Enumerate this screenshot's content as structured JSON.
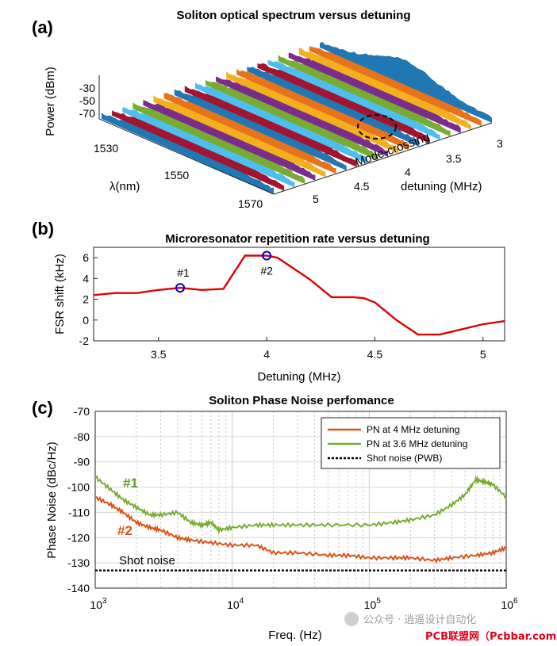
{
  "chart_data": [
    {
      "type": "area",
      "panel_label": "(a)",
      "title": "Soliton optical spectrum versus detuning",
      "x_axis": {
        "label": "λ(nm)",
        "ticks": [
          "1530",
          "1550",
          "1570"
        ]
      },
      "y_axis": {
        "label": "detuning (MHz)",
        "ticks": [
          "3",
          "3.5",
          "4",
          "4.5",
          "5"
        ]
      },
      "z_axis": {
        "label": "Power (dBm)",
        "ticks": [
          "-30",
          "-50",
          "-70"
        ]
      },
      "annotation": "Mode-crossing",
      "series_count": 22,
      "colors": [
        "#1f77b4",
        "#e8731a",
        "#f2b01e",
        "#7b2d8e",
        "#77ac30",
        "#4dbeee",
        "#a2142f"
      ]
    },
    {
      "type": "line",
      "panel_label": "(b)",
      "title": "Microresonator repetition rate versus detuning",
      "xlabel": "Detuning (MHz)",
      "ylabel": "FSR shift (kHz)",
      "xlim": [
        3.2,
        5.1
      ],
      "ylim": [
        -2,
        7
      ],
      "xticks": [
        "3.5",
        "4",
        "4.5",
        "5"
      ],
      "yticks": [
        "-2",
        "0",
        "2",
        "4",
        "6"
      ],
      "series": [
        {
          "color": "#e00000",
          "x": [
            3.2,
            3.3,
            3.4,
            3.5,
            3.6,
            3.65,
            3.7,
            3.8,
            3.9,
            3.95,
            4.0,
            4.05,
            4.1,
            4.2,
            4.3,
            4.4,
            4.45,
            4.5,
            4.6,
            4.7,
            4.8,
            4.9,
            5.0,
            5.1
          ],
          "y": [
            2.4,
            2.6,
            2.6,
            2.9,
            3.1,
            3.0,
            2.9,
            3.0,
            6.2,
            6.2,
            6.2,
            6.0,
            5.3,
            3.9,
            2.2,
            2.2,
            2.1,
            1.7,
            0.0,
            -1.4,
            -1.4,
            -0.9,
            -0.4,
            -0.1
          ]
        }
      ],
      "markers": [
        {
          "label": "#1",
          "x": 3.6,
          "y": 3.1
        },
        {
          "label": "#2",
          "x": 4.0,
          "y": 6.2
        }
      ]
    },
    {
      "type": "line",
      "panel_label": "(c)",
      "title": "Soliton Phase Noise perfomance",
      "xlabel": "Freq. (Hz)",
      "ylabel": "Phase Noise (dBc/Hz)",
      "xscale": "log",
      "xlim": [
        1000,
        1000000
      ],
      "ylim": [
        -140,
        -70
      ],
      "grid": true,
      "legend_position": "top-right",
      "xticks": [
        {
          "base": "10",
          "exp": "3"
        },
        {
          "base": "10",
          "exp": "4"
        },
        {
          "base": "10",
          "exp": "5"
        },
        {
          "base": "10",
          "exp": "6"
        }
      ],
      "yticks": [
        "-70",
        "-80",
        "-90",
        "-100",
        "-110",
        "-120",
        "-130",
        "-140"
      ],
      "series": [
        {
          "name": "PN  at 4 MHz detuning",
          "color": "#d95319",
          "x": [
            1000,
            1300,
            1600,
            2000,
            2500,
            3000,
            4000,
            5000,
            7000,
            10000,
            15000,
            20000,
            30000,
            50000,
            70000,
            100000,
            150000,
            200000,
            300000,
            400000,
            600000,
            800000,
            1000000
          ],
          "y": [
            -104,
            -107,
            -110,
            -114,
            -116,
            -117,
            -120,
            -121,
            -122,
            -123,
            -123,
            -126,
            -126,
            -127,
            -127,
            -128,
            -128,
            -128,
            -129,
            -128,
            -127,
            -126,
            -124
          ]
        },
        {
          "name": "PN  at 3.6 MHz detuning",
          "color": "#77ac30",
          "x": [
            1000,
            1300,
            1600,
            2000,
            2500,
            3000,
            4000,
            5000,
            6000,
            7000,
            8000,
            10000,
            15000,
            20000,
            30000,
            50000,
            100000,
            150000,
            200000,
            300000,
            400000,
            500000,
            600000,
            700000,
            800000,
            1000000
          ],
          "y": [
            -96,
            -101,
            -105,
            -108,
            -111,
            -111,
            -110,
            -114,
            -115,
            -114,
            -117,
            -116,
            -115,
            -115,
            -115,
            -115,
            -115,
            -114,
            -113,
            -111,
            -107,
            -103,
            -97,
            -98,
            -99,
            -104
          ]
        },
        {
          "name": "Shot noise (PWB)",
          "color": "#000000",
          "dashed": true,
          "x": [
            1000,
            1000000
          ],
          "y": [
            -133,
            -133
          ]
        }
      ],
      "annotations": {
        "s1": "#1",
        "s2": "#2",
        "shot": "Shot noise"
      }
    }
  ],
  "watermark": {
    "line1": "公众号 · 逍遥设计自动化",
    "line2": "PCB联盟网（Pcbbar.com）"
  }
}
